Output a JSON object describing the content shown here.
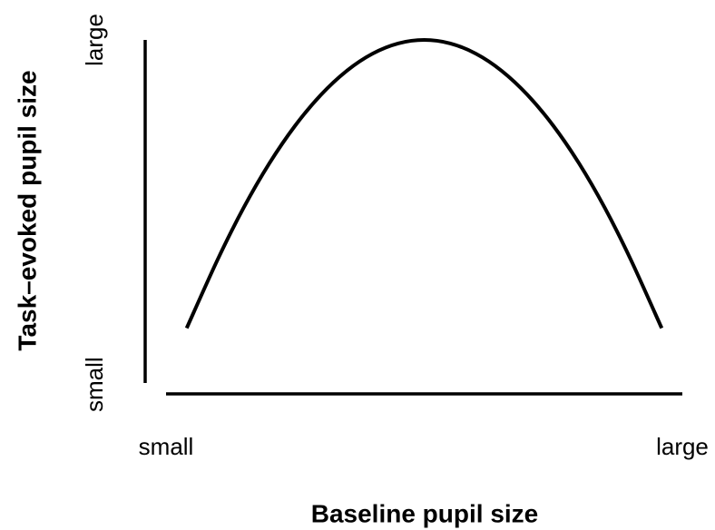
{
  "chart_data": {
    "type": "line",
    "xlabel": "Baseline pupil size",
    "ylabel": "Task–evoked pupil size",
    "x": [
      0.04,
      0.1,
      0.15,
      0.2,
      0.25,
      0.3,
      0.35,
      0.4,
      0.45,
      0.5,
      0.55,
      0.6,
      0.65,
      0.7,
      0.75,
      0.8,
      0.85,
      0.9,
      0.96
    ],
    "values": [
      0.16,
      0.36,
      0.51,
      0.64,
      0.75,
      0.84,
      0.91,
      0.96,
      0.99,
      1,
      0.99,
      0.96,
      0.91,
      0.84,
      0.75,
      0.64,
      0.51,
      0.36,
      0.16
    ],
    "color": "#000000",
    "xlim": [
      0,
      1
    ],
    "ylim": [
      0,
      1
    ],
    "xticks": [
      {
        "value": 0,
        "label": "small"
      },
      {
        "value": 1,
        "label": "large"
      }
    ],
    "yticks": [
      {
        "value": 0,
        "label": "small"
      },
      {
        "value": 1,
        "label": "large"
      }
    ]
  }
}
